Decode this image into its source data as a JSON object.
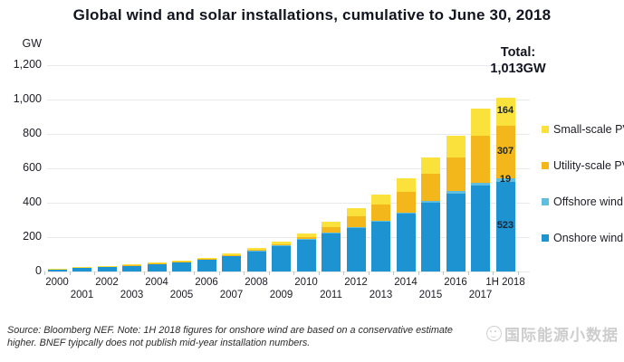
{
  "chart_data": {
    "type": "bar",
    "stacked": true,
    "title": "Global wind and solar installations, cumulative to June 30, 2018",
    "unit_label": "GW",
    "categories": [
      "2000",
      "2001",
      "2002",
      "2003",
      "2004",
      "2005",
      "2006",
      "2007",
      "2008",
      "2009",
      "2010",
      "2011",
      "2012",
      "2013",
      "2014",
      "2015",
      "2016",
      "2017",
      "1H 2018"
    ],
    "series": [
      {
        "name": "Onshore wind",
        "color": "#1e93d2",
        "values": [
          16.5,
          23,
          30,
          38,
          46,
          58,
          73,
          92,
          118,
          150,
          185,
          223,
          255,
          288,
          335,
          398,
          455,
          499,
          523
        ]
      },
      {
        "name": "Offshore wind",
        "color": "#5fbddd",
        "values": [
          0.1,
          0.1,
          0.2,
          0.5,
          0.6,
          0.7,
          0.9,
          1.1,
          1.4,
          2,
          3,
          4,
          5,
          7,
          8,
          12,
          14,
          18,
          19
        ]
      },
      {
        "name": "Utility-scale PV",
        "color": "#f3b71b",
        "values": [
          0.2,
          0.3,
          0.4,
          0.5,
          0.8,
          1.3,
          1.8,
          2.7,
          4.5,
          7,
          12,
          33,
          62,
          92,
          122,
          158,
          195,
          270,
          307
        ]
      },
      {
        "name": "Small-scale PV",
        "color": "#fbe13c",
        "values": [
          0.8,
          1.1,
          1.7,
          2.3,
          3.4,
          4.5,
          5.8,
          7.6,
          11,
          16,
          20,
          30,
          45,
          60,
          77,
          95,
          125,
          160,
          164
        ]
      }
    ],
    "ylim": [
      0,
      1200
    ],
    "yticks": [
      0,
      200,
      400,
      600,
      800,
      1000,
      1200
    ],
    "ytick_labels": [
      "0",
      "200",
      "400",
      "600",
      "800",
      "1,000",
      "1,200"
    ],
    "grid": true,
    "legend_position": "right",
    "legend": [
      {
        "label": "Small-scale PV",
        "color": "#fbe13c"
      },
      {
        "label": "Utility-scale PV",
        "color": "#f3b71b"
      },
      {
        "label": "Offshore wind",
        "color": "#5fbddd"
      },
      {
        "label": "Onshore wind",
        "color": "#1e93d2"
      }
    ],
    "total_annotation": {
      "label": "Total:",
      "value": "1,013GW"
    },
    "last_bar_labels": [
      {
        "series": "Small-scale PV",
        "text": "164"
      },
      {
        "series": "Utility-scale PV",
        "text": "307"
      },
      {
        "series": "Offshore wind",
        "text": "19"
      },
      {
        "series": "Onshore wind",
        "text": "523"
      }
    ]
  },
  "source_note": {
    "line1": "Source: Bloomberg NEF. Note: 1H 2018 figures for onshore wind are based on a conservative estimate",
    "line2": "higher. BNEF tyipcally does not publish mid-year installation numbers."
  },
  "watermark": {
    "text": "国际能源小数据",
    "icon": "smiley-face-icon"
  }
}
